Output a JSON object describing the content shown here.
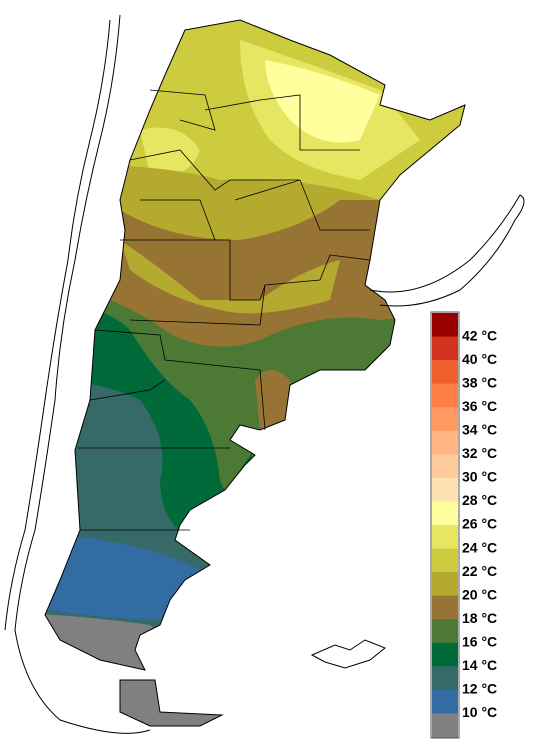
{
  "legend": {
    "colors": [
      "#9b0000",
      "#d2321e",
      "#f0602e",
      "#ff7f45",
      "#ff9a62",
      "#ffb482",
      "#ffcb9a",
      "#ffe2b4",
      "#ffff9e",
      "#e6e663",
      "#cccc3e",
      "#b4aa2f",
      "#987434",
      "#4c7a34",
      "#006a3a",
      "#356a69",
      "#336ca3",
      "#808080"
    ],
    "items": [
      "42 °C",
      "40 °C",
      "38 °C",
      "36 °C",
      "34 °C",
      "32 °C",
      "30 °C",
      "28 °C",
      "26 °C",
      "24 °C",
      "22 °C",
      "20 °C",
      "18 °C",
      "16 °C",
      "14 °C",
      "12 °C",
      "10 °C"
    ]
  }
}
